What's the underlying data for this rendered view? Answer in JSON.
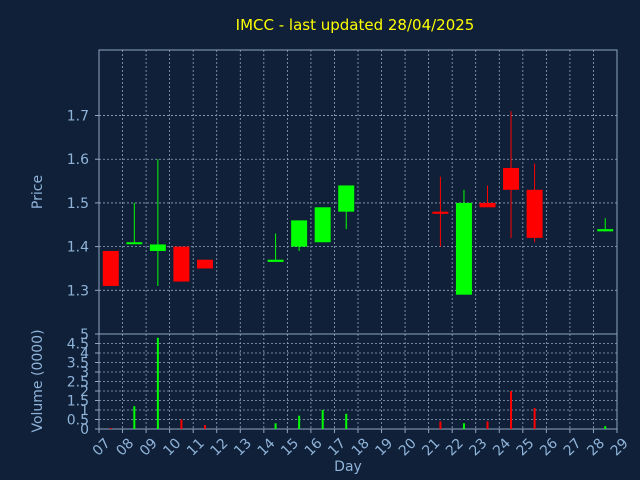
{
  "chart_data": [
    {
      "type": "candlestick",
      "title": "IMCC - last updated 28/04/2025",
      "ylabel": "Price",
      "ylim": [
        1.2,
        1.85
      ],
      "yticks": [
        1.3,
        1.4,
        1.5,
        1.6,
        1.7
      ],
      "grid": true,
      "candles": [
        {
          "day": "07",
          "open": 1.39,
          "high": 1.39,
          "low": 1.31,
          "close": 1.31
        },
        {
          "day": "08",
          "open": 1.41,
          "high": 1.5,
          "low": 1.41,
          "close": 1.41
        },
        {
          "day": "09",
          "open": 1.39,
          "high": 1.6,
          "low": 1.31,
          "close": 1.405
        },
        {
          "day": "10",
          "open": 1.4,
          "high": 1.4,
          "low": 1.32,
          "close": 1.32
        },
        {
          "day": "11",
          "open": 1.37,
          "high": 1.37,
          "low": 1.35,
          "close": 1.35
        },
        {
          "day": "14",
          "open": 1.365,
          "high": 1.43,
          "low": 1.365,
          "close": 1.37
        },
        {
          "day": "15",
          "open": 1.4,
          "high": 1.46,
          "low": 1.39,
          "close": 1.46
        },
        {
          "day": "16",
          "open": 1.41,
          "high": 1.49,
          "low": 1.41,
          "close": 1.49
        },
        {
          "day": "17",
          "open": 1.48,
          "high": 1.54,
          "low": 1.44,
          "close": 1.54
        },
        {
          "day": "21",
          "open": 1.48,
          "high": 1.56,
          "low": 1.4,
          "close": 1.475
        },
        {
          "day": "22",
          "open": 1.29,
          "high": 1.53,
          "low": 1.29,
          "close": 1.5
        },
        {
          "day": "23",
          "open": 1.5,
          "high": 1.54,
          "low": 1.49,
          "close": 1.49
        },
        {
          "day": "24",
          "open": 1.58,
          "high": 1.71,
          "low": 1.42,
          "close": 1.53
        },
        {
          "day": "25",
          "open": 1.53,
          "high": 1.59,
          "low": 1.41,
          "close": 1.42
        },
        {
          "day": "28",
          "open": 1.435,
          "high": 1.465,
          "low": 1.435,
          "close": 1.44
        }
      ]
    },
    {
      "type": "bar",
      "ylabel": "Volume (0000)",
      "ylim": [
        0,
        5
      ],
      "yticks": [
        "0",
        "0.5",
        "1",
        "1.5",
        "2",
        "2.5",
        "3",
        "3.5",
        "4",
        "4.5",
        "5"
      ],
      "grid": true,
      "xlabel": "Day",
      "x_ticks": [
        "07",
        "08",
        "09",
        "10",
        "11",
        "12",
        "13",
        "14",
        "15",
        "16",
        "17",
        "18",
        "19",
        "20",
        "21",
        "22",
        "23",
        "24",
        "25",
        "26",
        "27",
        "28",
        "29"
      ],
      "bars": [
        {
          "day": "07",
          "value": 0.05,
          "direction": "down"
        },
        {
          "day": "08",
          "value": 1.2,
          "direction": "up"
        },
        {
          "day": "09",
          "value": 4.8,
          "direction": "up"
        },
        {
          "day": "10",
          "value": 0.5,
          "direction": "down"
        },
        {
          "day": "11",
          "value": 0.2,
          "direction": "down"
        },
        {
          "day": "14",
          "value": 0.3,
          "direction": "up"
        },
        {
          "day": "15",
          "value": 0.7,
          "direction": "up"
        },
        {
          "day": "16",
          "value": 1.0,
          "direction": "up"
        },
        {
          "day": "17",
          "value": 0.8,
          "direction": "up"
        },
        {
          "day": "21",
          "value": 0.4,
          "direction": "down"
        },
        {
          "day": "22",
          "value": 0.3,
          "direction": "up"
        },
        {
          "day": "23",
          "value": 0.4,
          "direction": "down"
        },
        {
          "day": "24",
          "value": 2.0,
          "direction": "down"
        },
        {
          "day": "25",
          "value": 1.1,
          "direction": "down"
        },
        {
          "day": "28",
          "value": 0.15,
          "direction": "up"
        }
      ]
    }
  ],
  "colors": {
    "background": "#0f2038",
    "title": "#ffff00",
    "text": "#8fb3d9",
    "grid": "#8fa6bf",
    "up": "#00ff00",
    "down": "#ff0000",
    "axis": "#8fa6bf"
  }
}
